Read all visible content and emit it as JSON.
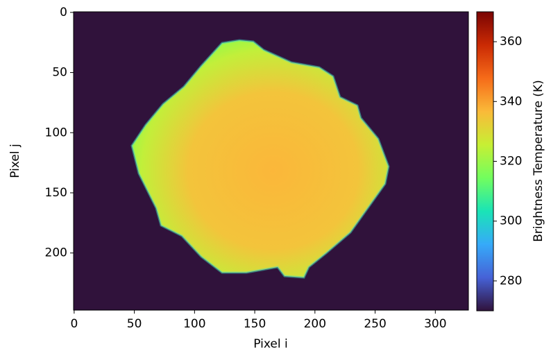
{
  "chart_data": {
    "type": "image",
    "xlabel": "Pixel i",
    "ylabel": "Pixel j",
    "xlim": [
      -0.5,
      327.5
    ],
    "ylim": [
      247.5,
      -0.5
    ],
    "xticks": [
      0,
      50,
      100,
      150,
      200,
      250,
      300
    ],
    "yticks": [
      0,
      50,
      100,
      150,
      200
    ],
    "colorbar": {
      "label": "Brightness Temperature (K)",
      "lim": [
        270,
        370
      ],
      "ticks": [
        280,
        300,
        320,
        340,
        360
      ]
    },
    "colormap": "turbo"
  }
}
